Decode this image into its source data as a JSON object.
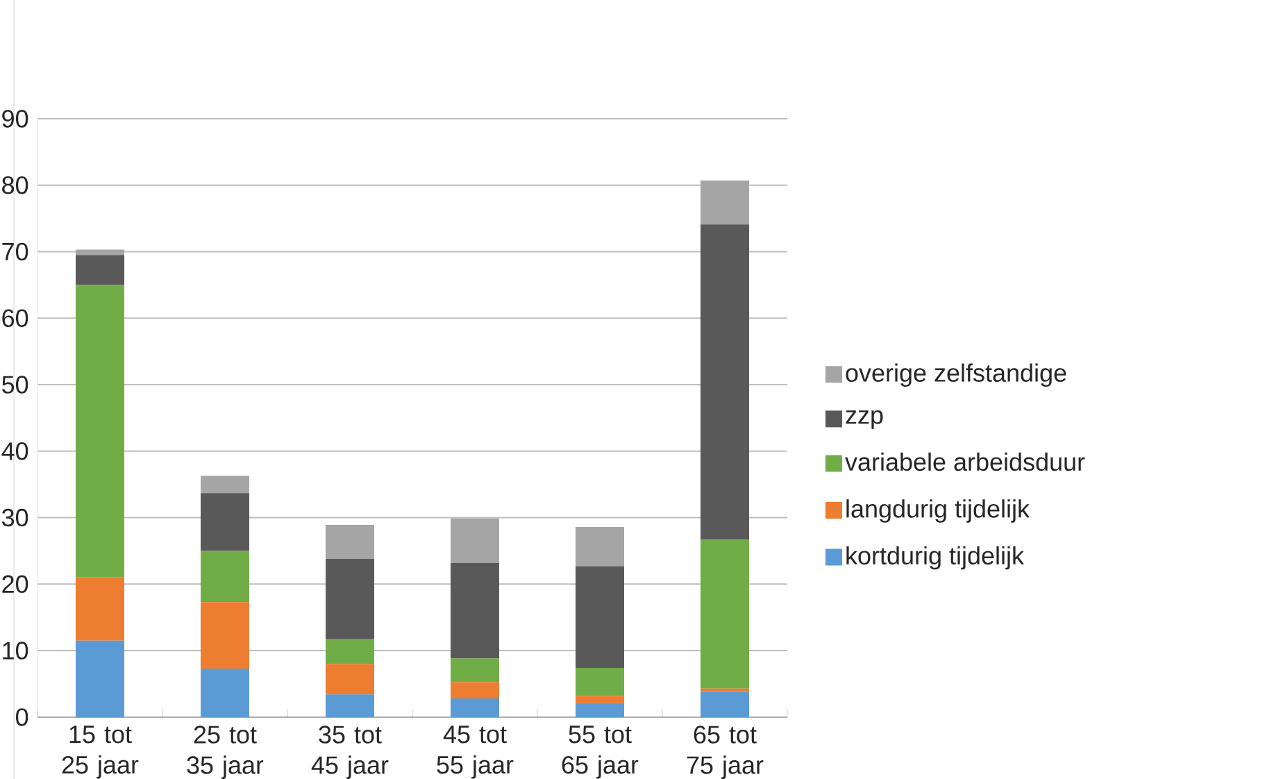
{
  "chart_data": {
    "type": "bar",
    "stacked": true,
    "categories": [
      "15 tot 25 jaar",
      "25 tot 35 jaar",
      "35 tot 45 jaar",
      "45 tot 55 jaar",
      "55 tot 65 jaar",
      "65 tot 75 jaar"
    ],
    "series": [
      {
        "name": "kortdurig tijdelijk",
        "color": "#5b9bd5",
        "values": [
          11.5,
          7.3,
          3.4,
          2.8,
          2.1,
          3.8
        ]
      },
      {
        "name": "langdurig tijdelijk",
        "color": "#ed7d31",
        "values": [
          9.5,
          10,
          4.6,
          2.5,
          1.1,
          0.5
        ]
      },
      {
        "name": "variabele arbeidsduur",
        "color": "#70ad47",
        "values": [
          44,
          7.7,
          3.7,
          3.5,
          4.2,
          22.4
        ]
      },
      {
        "name": "zzp",
        "color": "#595959",
        "values": [
          4.5,
          8.7,
          12.1,
          14.4,
          15.3,
          47.4
        ]
      },
      {
        "name": "overige zelfstandige",
        "color": "#a5a5a5",
        "values": [
          0.8,
          2.6,
          5.1,
          6.7,
          5.9,
          6.6
        ]
      }
    ],
    "ylim": [
      0,
      90
    ],
    "yticks": [
      0,
      10,
      20,
      30,
      40,
      50,
      60,
      70,
      80,
      90
    ],
    "grid": "y",
    "legend": "right"
  }
}
